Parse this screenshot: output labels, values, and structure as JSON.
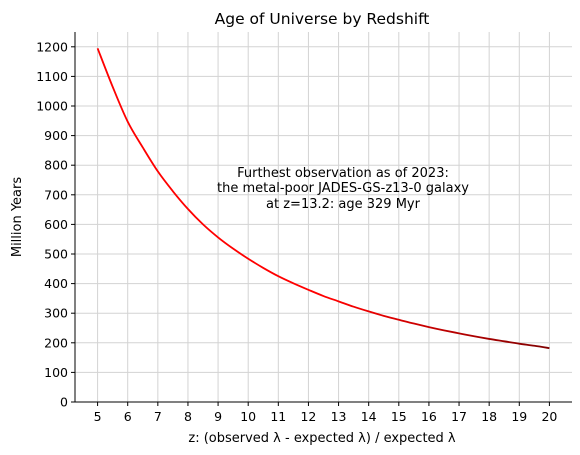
{
  "chart_data": {
    "type": "line",
    "title": "Age of Universe by Redshift",
    "xlabel": "z: (observed λ - expected λ) / expected λ",
    "ylabel": "Million Years",
    "xlim": [
      4.25,
      20.75
    ],
    "ylim": [
      0,
      1250
    ],
    "x_ticks": [
      5,
      6,
      7,
      8,
      9,
      10,
      11,
      12,
      13,
      14,
      15,
      16,
      17,
      18,
      19,
      20
    ],
    "y_ticks": [
      0,
      100,
      200,
      300,
      400,
      500,
      600,
      700,
      800,
      900,
      1000,
      1100,
      1200
    ],
    "grid": true,
    "line_color_start": "#ff0000",
    "line_color_end": "#800000",
    "annotation": {
      "lines": [
        "Furthest observation as of 2023:",
        "the metal-poor JADES-GS-z13-0 galaxy",
        "at z=13.2: age 329 Myr"
      ],
      "x": 13.2,
      "y": 700
    },
    "series": [
      {
        "x": [
          5,
          5.5,
          6,
          6.5,
          7,
          7.5,
          8,
          8.5,
          9,
          9.5,
          10,
          10.5,
          11,
          11.5,
          12,
          12.5,
          13,
          13.5,
          14,
          14.5,
          15,
          15.5,
          16,
          16.5,
          17,
          17.5,
          18,
          18.5,
          19,
          19.5,
          20
        ],
        "y": [
          1195,
          1065,
          947,
          860,
          779,
          712,
          652,
          600,
          556,
          518,
          484,
          453,
          425,
          401,
          379,
          358,
          340,
          322,
          306,
          291,
          278,
          265,
          253,
          242,
          232,
          222,
          213,
          205,
          197,
          190,
          182
        ]
      }
    ]
  }
}
